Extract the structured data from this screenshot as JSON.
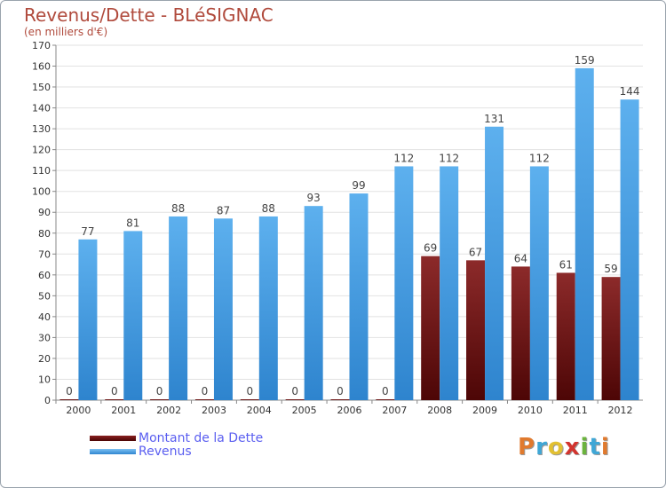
{
  "title": "Revenus/Dette - BLéSIGNAC",
  "subtitle": "(en milliers d'€)",
  "colors": {
    "dette": "#6b0a0a",
    "revenus": "#4da3e8",
    "title": "#b04a3c",
    "legend_text": "#5a5ef0"
  },
  "chart_data": {
    "type": "bar",
    "title": "Revenus/Dette - BLéSIGNAC",
    "ylabel": "(en milliers d'€)",
    "xlabel": "",
    "ylim": [
      0,
      170
    ],
    "yticks": [
      0,
      10,
      20,
      30,
      40,
      50,
      60,
      70,
      80,
      90,
      100,
      110,
      120,
      130,
      140,
      150,
      160,
      170
    ],
    "categories": [
      "2000",
      "2001",
      "2002",
      "2003",
      "2004",
      "2005",
      "2006",
      "2007",
      "2008",
      "2009",
      "2010",
      "2011",
      "2012"
    ],
    "series": [
      {
        "name": "Montant de la Dette",
        "values": [
          0,
          0,
          0,
          0,
          0,
          0,
          0,
          0,
          69,
          67,
          64,
          61,
          59
        ]
      },
      {
        "name": "Revenus",
        "values": [
          77,
          81,
          88,
          87,
          88,
          93,
          99,
          112,
          112,
          131,
          112,
          159,
          144
        ]
      }
    ],
    "grid": true,
    "legend": "bottom-left"
  },
  "legend": [
    {
      "label": "Montant de la Dette",
      "color": "#6b0a0a"
    },
    {
      "label": "Revenus",
      "color": "#4da3e8"
    }
  ],
  "logo": {
    "letters": [
      "P",
      "r",
      "o",
      "x",
      "i",
      "t",
      "i"
    ]
  }
}
